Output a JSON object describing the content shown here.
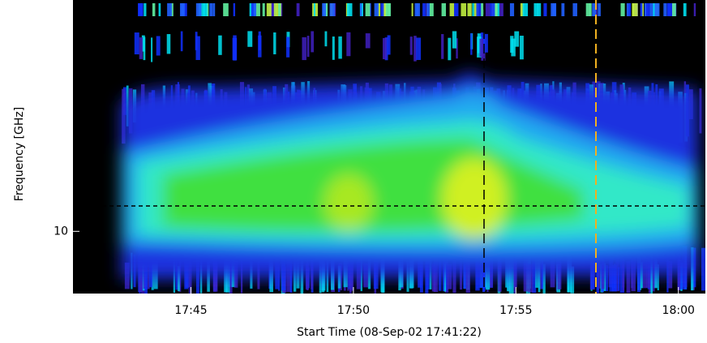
{
  "chart_data": {
    "type": "spectrogram",
    "x_label": "Start Time (08-Sep-02 17:41:22)",
    "y_label": "Frequency [GHz]",
    "xlim": [
      1061.37,
      1080.83
    ],
    "xticks": [
      {
        "value": 1065,
        "label": "17:45"
      },
      {
        "value": 1070,
        "label": "17:50"
      },
      {
        "value": 1075,
        "label": "17:55"
      },
      {
        "value": 1080,
        "label": "18:00"
      }
    ],
    "ylim": [
      8.3,
      20
    ],
    "yticks": [
      10
    ],
    "log_y": true
  }
}
